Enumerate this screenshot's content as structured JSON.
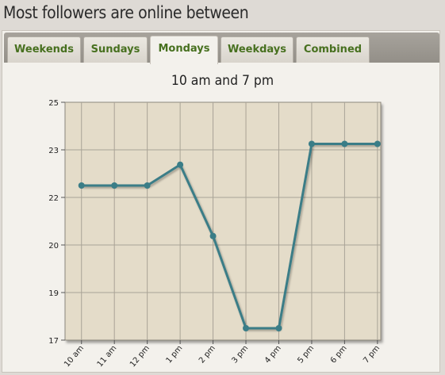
{
  "page": {
    "title": "Most followers are online between"
  },
  "tabs": [
    {
      "label": "Weekends",
      "active": false
    },
    {
      "label": "Sundays",
      "active": false
    },
    {
      "label": "Mondays",
      "active": true
    },
    {
      "label": "Weekdays",
      "active": false
    },
    {
      "label": "Combined",
      "active": false
    }
  ],
  "colors": {
    "line": "#3a7d87",
    "plot_bg": "#e4dcc9",
    "grid": "#a9a396"
  },
  "chart_data": {
    "type": "line",
    "title": "10 am and 7 pm",
    "xlabel": "",
    "ylabel": "",
    "categories": [
      "10 am",
      "11 am",
      "12 pm",
      "1 pm",
      "2 pm",
      "3 pm",
      "4 pm",
      "5 pm",
      "6 pm",
      "7 pm"
    ],
    "series": [
      {
        "values": [
          22.2,
          22.2,
          22.2,
          22.9,
          20.5,
          17.4,
          17.4,
          23.6,
          23.6,
          23.6
        ]
      }
    ],
    "y_tick_labels": [
      "25",
      "23",
      "22",
      "20",
      "19",
      "17"
    ],
    "ylim": [
      17,
      25
    ],
    "grid": true,
    "legend": "none"
  }
}
